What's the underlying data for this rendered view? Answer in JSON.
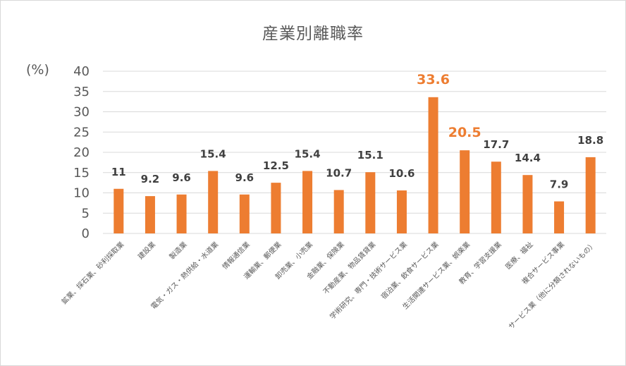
{
  "chart_data": {
    "type": "bar",
    "title": "産業別離職率",
    "ylabel": "(%)",
    "xlabel": "",
    "ylim": [
      0,
      40
    ],
    "yticks": [
      0,
      5,
      10,
      15,
      20,
      25,
      30,
      35,
      40
    ],
    "grid": true,
    "legend": "none",
    "bar_color": "#ed7d31",
    "highlight_label_color": "#ed7d31",
    "label_color": "#404040",
    "grid_color": "#d9d9d9",
    "categories": [
      "鉱業、採石業、砂利採取業",
      "建設業",
      "製造業",
      "電気・ガス・熱供給・水道業",
      "情報通信業",
      "運輸業、郵便業",
      "卸売業、小売業",
      "金融業、保険業",
      "不動産業、物品賃貸業",
      "学術研究、専門・技術サービス業",
      "宿泊業、飲食サービス業",
      "生活関連サービス業、娯楽業",
      "教育、学習支援業",
      "医療、福祉",
      "複合サービス事業",
      "サービス業（他に分類されないもの）"
    ],
    "values": [
      11,
      9.2,
      9.6,
      15.4,
      9.6,
      12.5,
      15.4,
      10.7,
      15.1,
      10.6,
      33.6,
      20.5,
      17.7,
      14.4,
      7.9,
      18.8
    ],
    "value_labels": [
      "11",
      "9.2",
      "9.6",
      "15.4",
      "9.6",
      "12.5",
      "15.4",
      "10.7",
      "15.1",
      "10.6",
      "33.6",
      "20.5",
      "17.7",
      "14.4",
      "7.9",
      "18.8"
    ],
    "highlighted": [
      10,
      11
    ]
  }
}
